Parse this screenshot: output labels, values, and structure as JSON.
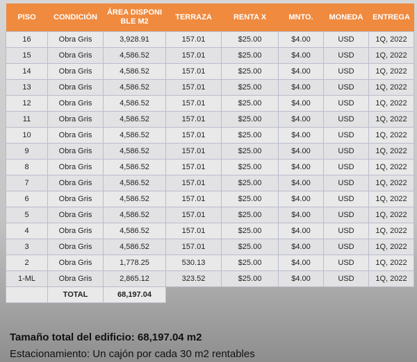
{
  "table": {
    "headers": [
      "PISO",
      "CONDICIÓN",
      "ÁREA DISPONIBLE M2",
      "TERRAZA",
      "RENTA X",
      "MNTO.",
      "MONEDA",
      "ENTREGA"
    ],
    "rows": [
      [
        "16",
        "Obra Gris",
        "3,928.91",
        "157.01",
        "$25.00",
        "$4.00",
        "USD",
        "1Q, 2022"
      ],
      [
        "15",
        "Obra Gris",
        "4,586.52",
        "157.01",
        "$25.00",
        "$4.00",
        "USD",
        "1Q, 2022"
      ],
      [
        "14",
        "Obra Gris",
        "4,586.52",
        "157.01",
        "$25.00",
        "$4.00",
        "USD",
        "1Q, 2022"
      ],
      [
        "13",
        "Obra Gris",
        "4,586.52",
        "157.01",
        "$25.00",
        "$4.00",
        "USD",
        "1Q, 2022"
      ],
      [
        "12",
        "Obra Gris",
        "4,586.52",
        "157.01",
        "$25.00",
        "$4.00",
        "USD",
        "1Q, 2022"
      ],
      [
        "11",
        "Obra Gris",
        "4,586.52",
        "157.01",
        "$25.00",
        "$4.00",
        "USD",
        "1Q, 2022"
      ],
      [
        "10",
        "Obra Gris",
        "4,586.52",
        "157.01",
        "$25.00",
        "$4.00",
        "USD",
        "1Q, 2022"
      ],
      [
        "9",
        "Obra Gris",
        "4,586.52",
        "157.01",
        "$25.00",
        "$4.00",
        "USD",
        "1Q, 2022"
      ],
      [
        "8",
        "Obra Gris",
        "4,586.52",
        "157.01",
        "$25.00",
        "$4.00",
        "USD",
        "1Q, 2022"
      ],
      [
        "7",
        "Obra Gris",
        "4,586.52",
        "157.01",
        "$25.00",
        "$4.00",
        "USD",
        "1Q, 2022"
      ],
      [
        "6",
        "Obra Gris",
        "4,586.52",
        "157.01",
        "$25.00",
        "$4.00",
        "USD",
        "1Q, 2022"
      ],
      [
        "5",
        "Obra Gris",
        "4,586.52",
        "157.01",
        "$25.00",
        "$4.00",
        "USD",
        "1Q, 2022"
      ],
      [
        "4",
        "Obra Gris",
        "4,586.52",
        "157.01",
        "$25.00",
        "$4.00",
        "USD",
        "1Q, 2022"
      ],
      [
        "3",
        "Obra Gris",
        "4,586.52",
        "157.01",
        "$25.00",
        "$4.00",
        "USD",
        "1Q, 2022"
      ],
      [
        "2",
        "Obra Gris",
        "1,778.25",
        "530.13",
        "$25.00",
        "$4.00",
        "USD",
        "1Q, 2022"
      ],
      [
        "1-ML",
        "Obra Gris",
        "2,865.12",
        "323.52",
        "$25.00",
        "$4.00",
        "USD",
        "1Q, 2022"
      ]
    ],
    "total": {
      "label": "TOTAL",
      "area": "68,197.04"
    }
  },
  "footer": {
    "total_size": "Tamaño total del edificio: 68,197.04 m2",
    "parking": "Estacionamiento: Un cajón por cada 30 m2 rentables"
  }
}
